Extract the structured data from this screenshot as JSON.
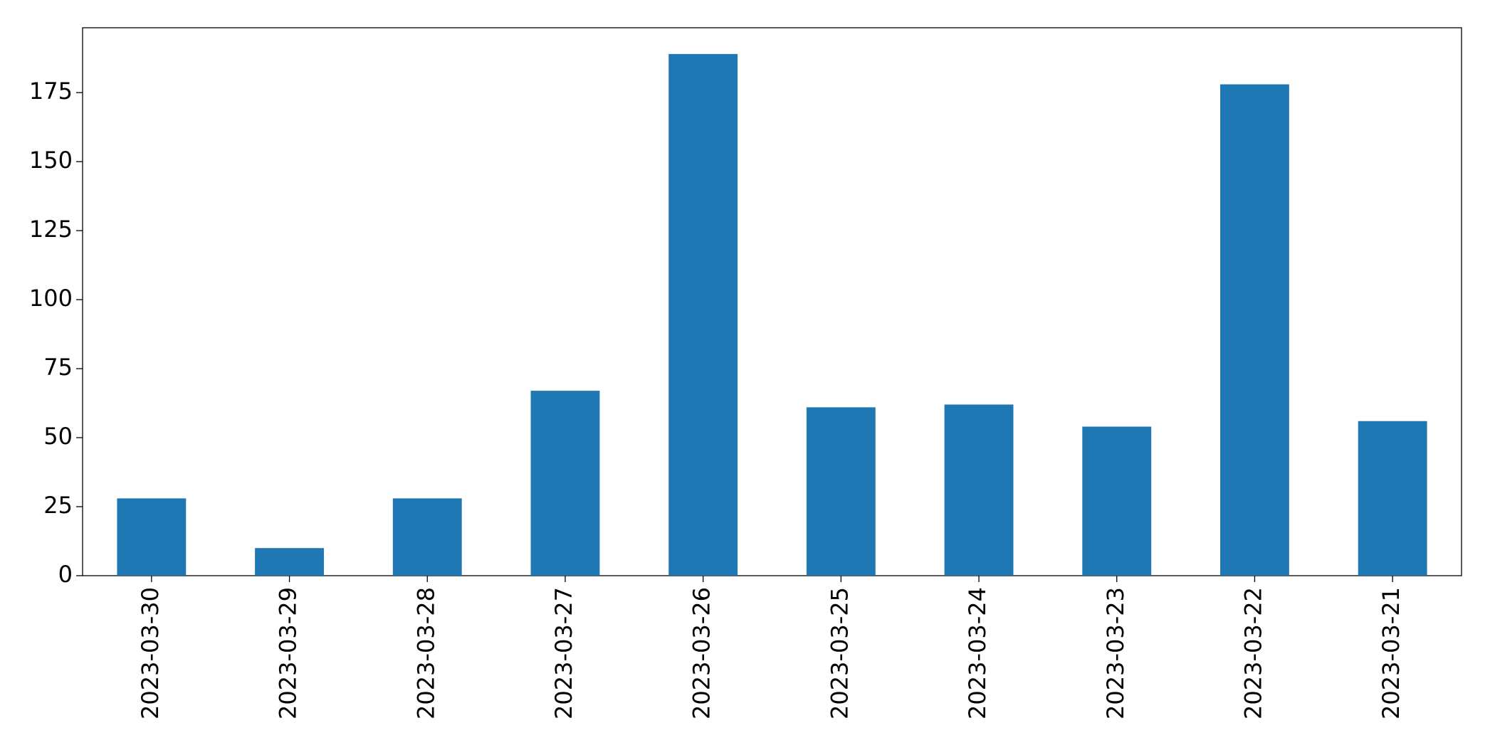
{
  "chart_data": {
    "type": "bar",
    "categories": [
      "2023-03-30",
      "2023-03-29",
      "2023-03-28",
      "2023-03-27",
      "2023-03-26",
      "2023-03-25",
      "2023-03-24",
      "2023-03-23",
      "2023-03-22",
      "2023-03-21"
    ],
    "values": [
      28,
      10,
      28,
      67,
      189,
      61,
      62,
      54,
      178,
      56
    ],
    "color": "#1f77b4",
    "ylim": [
      0,
      198.5
    ],
    "yticks": [
      0,
      25,
      50,
      75,
      100,
      125,
      150,
      175
    ],
    "grid": false
  }
}
